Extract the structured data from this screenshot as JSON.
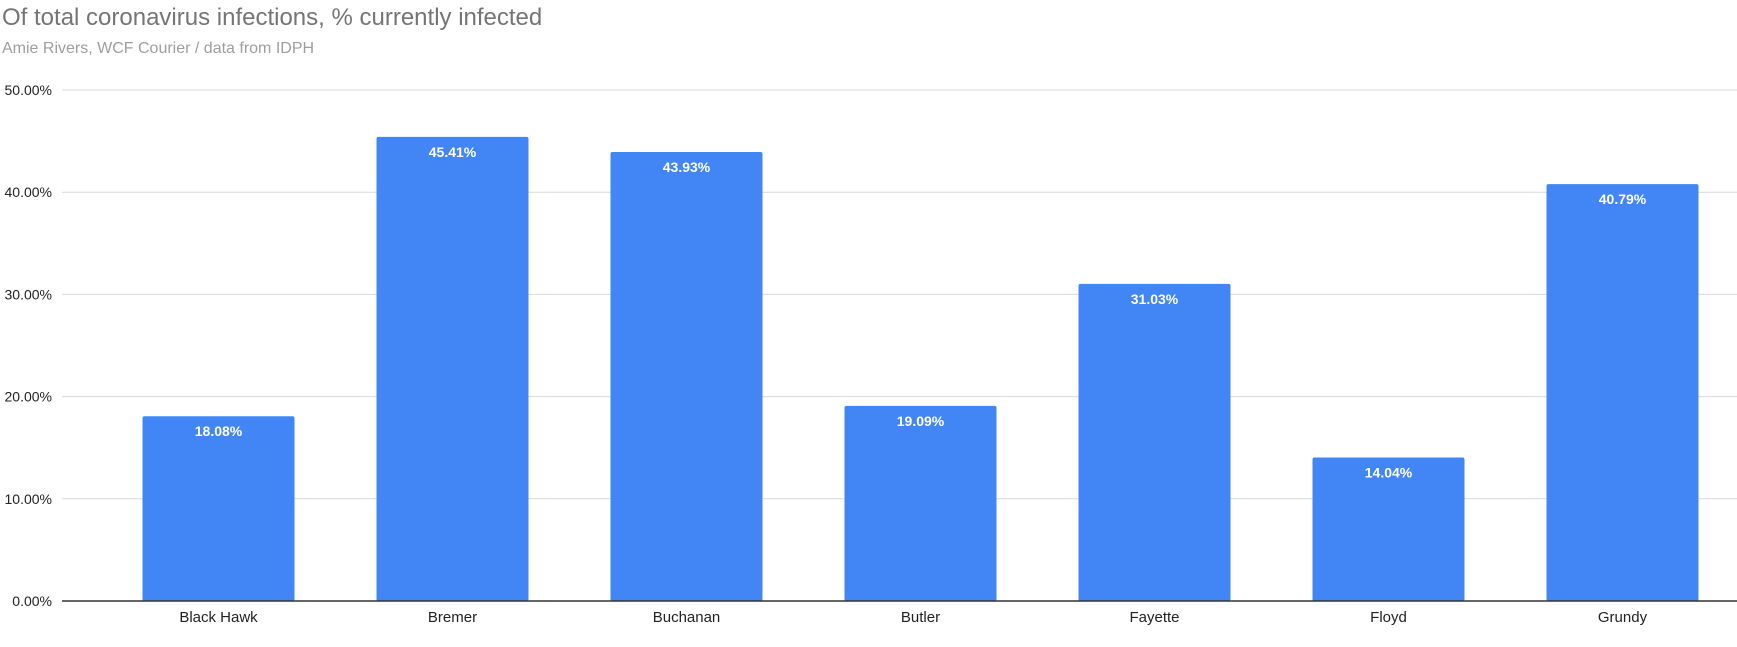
{
  "chart_data": {
    "type": "bar",
    "title": "Of total coronavirus infections, % currently infected",
    "subtitle": "Amie Rivers, WCF Courier / data from IDPH",
    "xlabel": "",
    "ylabel": "",
    "categories": [
      "Black Hawk",
      "Bremer",
      "Buchanan",
      "Butler",
      "Fayette",
      "Floyd",
      "Grundy"
    ],
    "values": [
      18.08,
      45.41,
      43.93,
      19.09,
      31.03,
      14.04,
      40.79
    ],
    "data_labels": [
      "18.08%",
      "45.41%",
      "43.93%",
      "19.09%",
      "31.03%",
      "14.04%",
      "40.79%"
    ],
    "ylim": [
      0,
      50
    ],
    "y_ticks": [
      0,
      10,
      20,
      30,
      40,
      50
    ],
    "y_tick_labels": [
      "0.00%",
      "10.00%",
      "20.00%",
      "30.00%",
      "40.00%",
      "50.00%"
    ],
    "grid": true,
    "legend": "none",
    "bar_color": "#4285f4",
    "grid_color": "#d9d9d9",
    "axis_color": "#333333"
  }
}
